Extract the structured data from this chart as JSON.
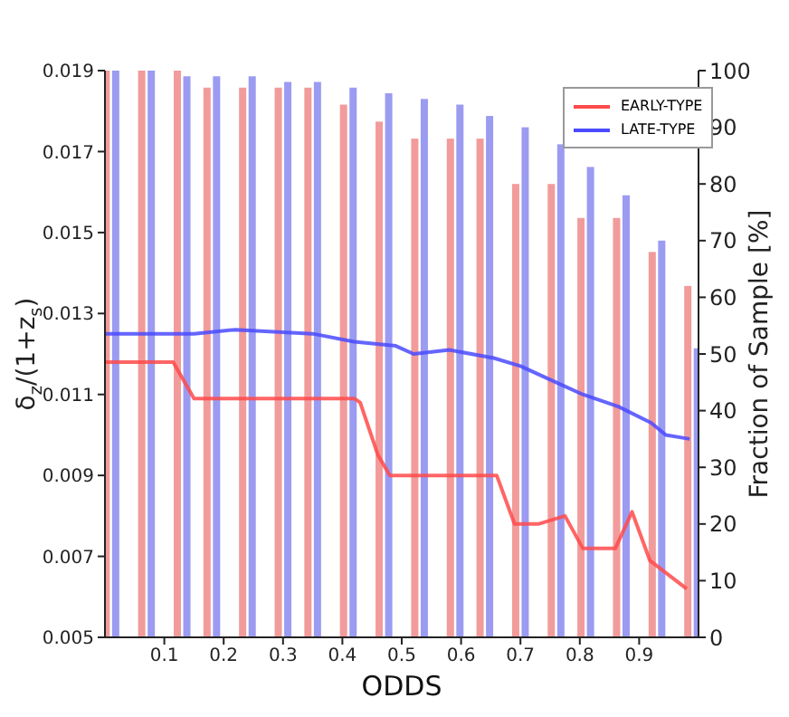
{
  "chart_data": {
    "type": "bar",
    "xlabel": "ODDS",
    "ylabel": "δ$_{z}$/(1+z$_{s}$)",
    "y2label": "Fraction of Sample [%]",
    "xlim": [
      0,
      1
    ],
    "xticks": [
      0.1,
      0.2,
      0.3,
      0.4,
      0.5,
      0.6,
      0.7,
      0.8,
      0.9
    ],
    "ylim": [
      0.005,
      0.019
    ],
    "yticks": [
      0.005,
      0.007,
      0.009,
      0.011,
      0.013,
      0.015,
      0.017,
      0.019
    ],
    "y2lim": [
      0,
      100
    ],
    "y2ticks": [
      0,
      10,
      20,
      30,
      40,
      50,
      60,
      70,
      80,
      90,
      100
    ],
    "legend": "top right",
    "grid": false,
    "series": [
      {
        "axis": "y2",
        "color": "#f08a8a",
        "x": [
          0.01,
          0.07,
          0.13,
          0.18,
          0.24,
          0.3,
          0.35,
          0.41,
          0.47,
          0.53,
          0.59,
          0.64,
          0.7,
          0.76,
          0.81,
          0.87,
          0.93,
          0.99
        ],
        "values": [
          100,
          100,
          100,
          97,
          97,
          97,
          97,
          94,
          91,
          88,
          88,
          88,
          80,
          80,
          74,
          74,
          68,
          62
        ]
      },
      {
        "axis": "y2",
        "color": "#8a8af0",
        "x": [
          0.01,
          0.07,
          0.13,
          0.18,
          0.24,
          0.3,
          0.35,
          0.41,
          0.47,
          0.53,
          0.59,
          0.64,
          0.7,
          0.76,
          0.81,
          0.87,
          0.93,
          0.99
        ],
        "values": [
          100,
          100,
          99,
          99,
          99,
          98,
          98,
          97,
          96,
          95,
          94,
          92,
          90,
          87,
          83,
          78,
          70,
          51
        ]
      },
      {
        "type": "line",
        "name": "EARLY-TYPE",
        "color": "#ff4a4a",
        "x": [
          0.0,
          0.115,
          0.15,
          0.42,
          0.43,
          0.46,
          0.48,
          0.66,
          0.69,
          0.73,
          0.775,
          0.805,
          0.86,
          0.888,
          0.918,
          0.98
        ],
        "values": [
          0.0118,
          0.0118,
          0.0109,
          0.0109,
          0.0108,
          0.0095,
          0.009,
          0.009,
          0.0078,
          0.0078,
          0.008,
          0.0072,
          0.0072,
          0.0081,
          0.0069,
          0.0062
        ]
      },
      {
        "type": "line",
        "name": "LATE-TYPE",
        "color": "#4a4aff",
        "x": [
          0.0,
          0.15,
          0.22,
          0.35,
          0.42,
          0.49,
          0.52,
          0.58,
          0.655,
          0.7,
          0.745,
          0.805,
          0.865,
          0.92,
          0.945,
          0.985
        ],
        "values": [
          0.0125,
          0.0125,
          0.0126,
          0.0125,
          0.0123,
          0.0122,
          0.012,
          0.0121,
          0.0119,
          0.0117,
          0.0114,
          0.011,
          0.0107,
          0.0103,
          0.01,
          0.0099
        ]
      }
    ]
  }
}
